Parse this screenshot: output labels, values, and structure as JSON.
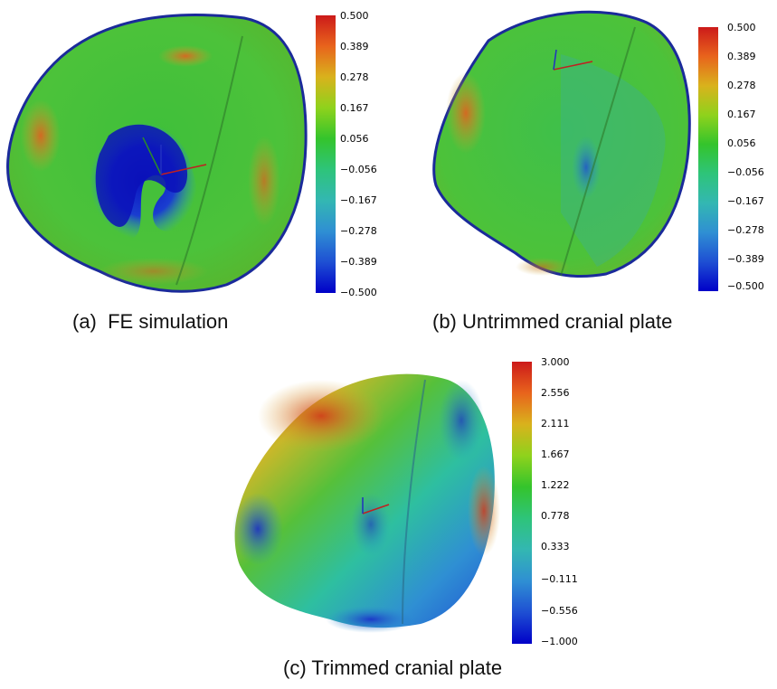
{
  "panels": [
    {
      "caption": "(a)  FE simulation",
      "colorbar": {
        "ticks": [
          "0.500",
          "0.389",
          "0.278",
          "0.167",
          "0.056",
          "−0.056",
          "−0.167",
          "−0.278",
          "−0.389",
          "−0.500"
        ],
        "colors": [
          "#cc1a1a",
          "#e8641c",
          "#d9b21c",
          "#8fd21c",
          "#34c42c",
          "#2ec47a",
          "#33b7b2",
          "#2f8fd3",
          "#1e4fd3",
          "#0000c8"
        ]
      }
    },
    {
      "caption": "(b) Untrimmed cranial plate",
      "colorbar": {
        "ticks": [
          "0.500",
          "0.389",
          "0.278",
          "0.167",
          "0.056",
          "−0.056",
          "−0.167",
          "−0.278",
          "−0.389",
          "−0.500"
        ],
        "colors": [
          "#cc1a1a",
          "#e8641c",
          "#d9b21c",
          "#8fd21c",
          "#34c42c",
          "#2ec47a",
          "#33b7b2",
          "#2f8fd3",
          "#1e4fd3",
          "#0000c8"
        ]
      }
    },
    {
      "caption": "(c) Trimmed cranial plate",
      "colorbar": {
        "ticks": [
          "3.000",
          "2.556",
          "2.111",
          "1.667",
          "1.222",
          "0.778",
          "0.333",
          "−0.111",
          "−0.556",
          "−1.000"
        ],
        "colors": [
          "#cc1a1a",
          "#e8641c",
          "#d9b21c",
          "#8fd21c",
          "#34c42c",
          "#2ec47a",
          "#33b7b2",
          "#2f8fd3",
          "#1e4fd3",
          "#0000c8"
        ]
      }
    }
  ]
}
